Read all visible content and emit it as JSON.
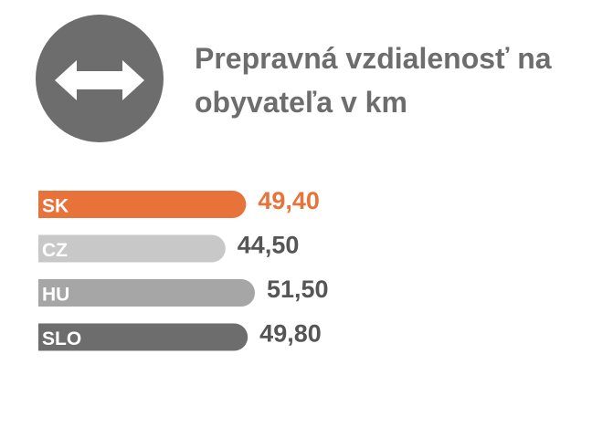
{
  "chart_data": {
    "type": "bar",
    "orientation": "horizontal",
    "title": "Prepravná vzdialenosť na obyvateľa v km",
    "categories": [
      "SK",
      "CZ",
      "HU",
      "SLO"
    ],
    "values": [
      49.4,
      44.5,
      51.5,
      49.8
    ],
    "value_labels": [
      "49,40",
      "44,50",
      "51,50",
      "49,80"
    ],
    "colors": [
      "#e8733a",
      "#c8c8c8",
      "#a6a6a6",
      "#6d6d6d"
    ],
    "label_colors": [
      "#e8733a",
      "#555555",
      "#555555",
      "#555555"
    ]
  }
}
